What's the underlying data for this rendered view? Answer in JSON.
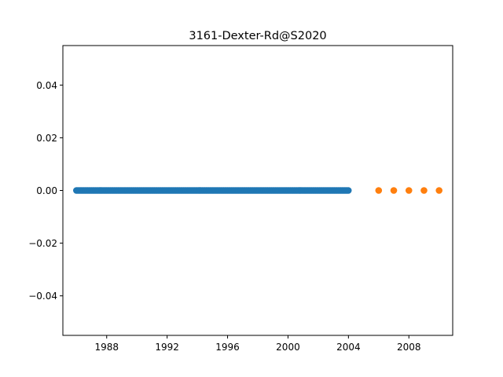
{
  "chart_data": {
    "type": "scatter",
    "title": "3161-Dexter-Rd@S2020",
    "xlabel": "",
    "ylabel": "",
    "xlim": [
      1985.1,
      2010.9
    ],
    "ylim": [
      -0.055,
      0.055
    ],
    "grid": false,
    "x_ticks": [
      1988,
      1992,
      1996,
      2000,
      2004,
      2008
    ],
    "x_tick_labels": [
      "1988",
      "1992",
      "1996",
      "2000",
      "2004",
      "2008"
    ],
    "y_ticks": [
      0.04,
      0.02,
      0.0,
      -0.02,
      -0.04
    ],
    "y_tick_labels": [
      "0.04",
      "0.02",
      "0.00",
      "−0.02",
      "−0.04"
    ],
    "series": [
      {
        "color": "#1f77b4",
        "x_range": [
          1986.0,
          2004.0
        ],
        "x_step": 0.0833,
        "y": 0.0
      },
      {
        "color": "#ff7f0e",
        "x": [
          2006,
          2007,
          2008,
          2009,
          2010
        ],
        "y": [
          0.0,
          0.0,
          0.0,
          0.0,
          0.0
        ]
      }
    ]
  }
}
